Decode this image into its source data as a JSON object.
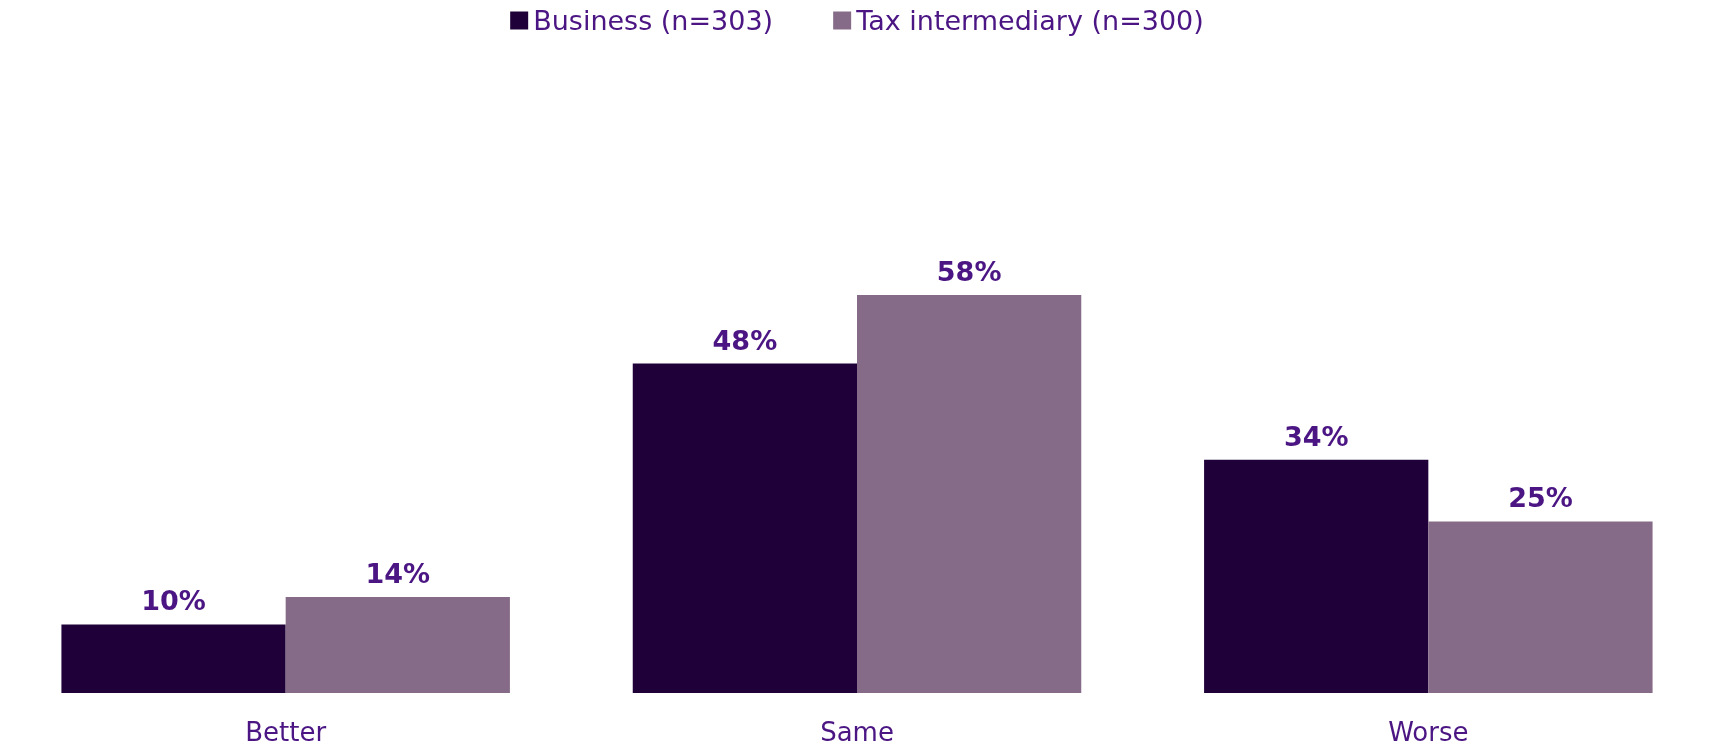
{
  "chart_data": {
    "type": "bar",
    "categories": [
      "Better",
      "Same",
      "Worse"
    ],
    "series": [
      {
        "name": "Business (n=303)",
        "color": "#1f0039",
        "values": [
          10,
          48,
          34
        ],
        "value_labels": [
          "10%",
          "48%",
          "34%"
        ]
      },
      {
        "name": "Tax intermediary (n=300)",
        "color": "#866b88",
        "values": [
          14,
          58,
          25
        ],
        "value_labels": [
          "14%",
          "58%",
          "25%"
        ]
      }
    ],
    "legend": "top"
  }
}
